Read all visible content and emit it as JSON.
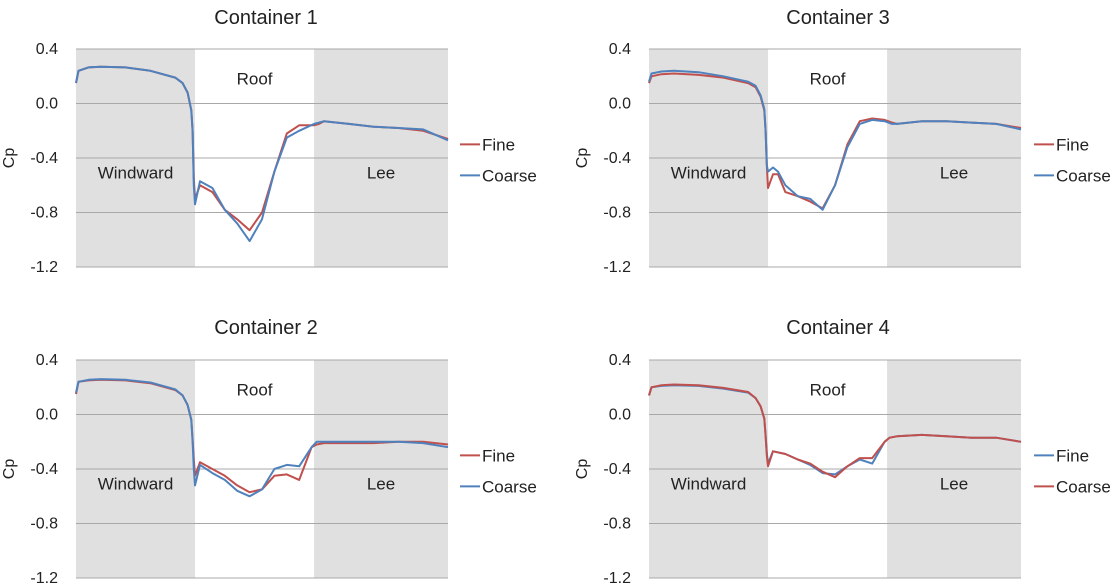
{
  "chart_data": [
    {
      "type": "line",
      "title": "Container 1",
      "ylabel": "Cp",
      "ylim": [
        -1.2,
        0.4
      ],
      "yticks": [
        "0.4",
        "0.0",
        "-0.4",
        "-0.8",
        "-1.2"
      ],
      "grid": true,
      "regions": [
        "Windward",
        "Roof",
        "Lee"
      ],
      "legend_position": "right",
      "series": [
        {
          "name": "Fine",
          "color": "#c0504d",
          "x": [
            0,
            0.01,
            0.05,
            0.1,
            0.2,
            0.3,
            0.4,
            0.43,
            0.45,
            0.465,
            0.47,
            0.475,
            0.48,
            0.5,
            0.55,
            0.6,
            0.65,
            0.7,
            0.75,
            0.8,
            0.85,
            0.9,
            0.96,
            0.98,
            1.0,
            1.1,
            1.2,
            1.3,
            1.4,
            1.5
          ],
          "y": [
            0.15,
            0.24,
            0.265,
            0.27,
            0.265,
            0.24,
            0.19,
            0.15,
            0.08,
            -0.05,
            -0.2,
            -0.55,
            -0.7,
            -0.6,
            -0.65,
            -0.78,
            -0.85,
            -0.93,
            -0.8,
            -0.5,
            -0.22,
            -0.16,
            -0.16,
            -0.15,
            -0.13,
            -0.15,
            -0.17,
            -0.18,
            -0.2,
            -0.26
          ]
        },
        {
          "name": "Coarse",
          "color": "#4f81bd",
          "x": [
            0,
            0.01,
            0.05,
            0.1,
            0.2,
            0.3,
            0.4,
            0.43,
            0.45,
            0.465,
            0.47,
            0.475,
            0.48,
            0.5,
            0.55,
            0.6,
            0.65,
            0.7,
            0.75,
            0.8,
            0.85,
            0.9,
            0.96,
            0.98,
            1.0,
            1.1,
            1.2,
            1.3,
            1.4,
            1.5
          ],
          "y": [
            0.15,
            0.24,
            0.265,
            0.27,
            0.265,
            0.24,
            0.19,
            0.15,
            0.08,
            -0.05,
            -0.2,
            -0.6,
            -0.74,
            -0.57,
            -0.62,
            -0.78,
            -0.88,
            -1.01,
            -0.85,
            -0.5,
            -0.25,
            -0.2,
            -0.15,
            -0.14,
            -0.13,
            -0.15,
            -0.17,
            -0.18,
            -0.19,
            -0.27
          ]
        }
      ]
    },
    {
      "type": "line",
      "title": "Container 3",
      "ylabel": "Cp",
      "ylim": [
        -1.2,
        0.4
      ],
      "yticks": [
        "0.4",
        "0.0",
        "-0.4",
        "-0.8",
        "-1.2"
      ],
      "grid": true,
      "regions": [
        "Windward",
        "Roof",
        "Lee"
      ],
      "legend_position": "right",
      "series": [
        {
          "name": "Fine",
          "color": "#c0504d",
          "x": [
            0,
            0.01,
            0.05,
            0.1,
            0.2,
            0.3,
            0.4,
            0.43,
            0.45,
            0.465,
            0.47,
            0.475,
            0.48,
            0.5,
            0.52,
            0.55,
            0.6,
            0.65,
            0.7,
            0.75,
            0.8,
            0.85,
            0.9,
            0.95,
            0.98,
            1.0,
            1.1,
            1.2,
            1.3,
            1.4,
            1.5
          ],
          "y": [
            0.15,
            0.2,
            0.215,
            0.22,
            0.21,
            0.19,
            0.15,
            0.12,
            0.05,
            -0.05,
            -0.2,
            -0.45,
            -0.62,
            -0.52,
            -0.52,
            -0.65,
            -0.68,
            -0.72,
            -0.77,
            -0.6,
            -0.3,
            -0.13,
            -0.11,
            -0.12,
            -0.14,
            -0.15,
            -0.13,
            -0.13,
            -0.14,
            -0.15,
            -0.18
          ]
        },
        {
          "name": "Coarse",
          "color": "#4f81bd",
          "x": [
            0,
            0.01,
            0.05,
            0.1,
            0.2,
            0.3,
            0.4,
            0.43,
            0.45,
            0.465,
            0.47,
            0.475,
            0.48,
            0.5,
            0.52,
            0.55,
            0.6,
            0.65,
            0.7,
            0.75,
            0.8,
            0.85,
            0.9,
            0.95,
            0.98,
            1.0,
            1.1,
            1.2,
            1.3,
            1.4,
            1.5
          ],
          "y": [
            0.16,
            0.22,
            0.235,
            0.24,
            0.23,
            0.2,
            0.16,
            0.13,
            0.06,
            -0.04,
            -0.2,
            -0.45,
            -0.5,
            -0.47,
            -0.5,
            -0.6,
            -0.68,
            -0.7,
            -0.78,
            -0.6,
            -0.32,
            -0.15,
            -0.12,
            -0.13,
            -0.15,
            -0.15,
            -0.13,
            -0.13,
            -0.14,
            -0.15,
            -0.19
          ]
        }
      ]
    },
    {
      "type": "line",
      "title": "Container 2",
      "ylabel": "Cp",
      "ylim": [
        -1.2,
        0.4
      ],
      "yticks": [
        "0.4",
        "0.0",
        "-0.4",
        "-0.8",
        "-1.2"
      ],
      "grid": true,
      "regions": [
        "Windward",
        "Roof",
        "Lee"
      ],
      "legend_position": "right",
      "series": [
        {
          "name": "Fine",
          "color": "#c0504d",
          "x": [
            0,
            0.01,
            0.05,
            0.1,
            0.2,
            0.3,
            0.4,
            0.43,
            0.45,
            0.465,
            0.47,
            0.475,
            0.48,
            0.5,
            0.55,
            0.6,
            0.65,
            0.7,
            0.75,
            0.8,
            0.85,
            0.9,
            0.95,
            0.97,
            1.0,
            1.1,
            1.2,
            1.3,
            1.4,
            1.5
          ],
          "y": [
            0.15,
            0.24,
            0.25,
            0.255,
            0.25,
            0.23,
            0.18,
            0.14,
            0.07,
            -0.04,
            -0.18,
            -0.33,
            -0.45,
            -0.35,
            -0.4,
            -0.45,
            -0.52,
            -0.57,
            -0.55,
            -0.45,
            -0.44,
            -0.48,
            -0.24,
            -0.22,
            -0.21,
            -0.21,
            -0.21,
            -0.2,
            -0.2,
            -0.22
          ]
        },
        {
          "name": "Coarse",
          "color": "#4f81bd",
          "x": [
            0,
            0.01,
            0.05,
            0.1,
            0.2,
            0.3,
            0.4,
            0.43,
            0.45,
            0.465,
            0.47,
            0.475,
            0.48,
            0.5,
            0.55,
            0.6,
            0.65,
            0.7,
            0.75,
            0.8,
            0.85,
            0.9,
            0.95,
            0.97,
            1.0,
            1.1,
            1.2,
            1.3,
            1.4,
            1.5
          ],
          "y": [
            0.16,
            0.24,
            0.255,
            0.26,
            0.255,
            0.235,
            0.185,
            0.14,
            0.07,
            -0.04,
            -0.2,
            -0.4,
            -0.52,
            -0.37,
            -0.43,
            -0.48,
            -0.56,
            -0.6,
            -0.55,
            -0.4,
            -0.37,
            -0.38,
            -0.24,
            -0.2,
            -0.2,
            -0.2,
            -0.2,
            -0.2,
            -0.21,
            -0.24
          ]
        }
      ]
    },
    {
      "type": "line",
      "title": "Container 4",
      "ylabel": "Cp",
      "ylim": [
        -1.2,
        0.4
      ],
      "yticks": [
        "0.4",
        "0.0",
        "-0.4",
        "-0.8",
        "-1.2"
      ],
      "grid": true,
      "regions": [
        "Windward",
        "Roof",
        "Lee"
      ],
      "legend_position": "right",
      "series": [
        {
          "name": "Fine",
          "color": "#4f81bd",
          "x": [
            0,
            0.01,
            0.05,
            0.1,
            0.2,
            0.3,
            0.4,
            0.43,
            0.45,
            0.465,
            0.47,
            0.475,
            0.48,
            0.5,
            0.55,
            0.6,
            0.65,
            0.7,
            0.75,
            0.8,
            0.85,
            0.9,
            0.95,
            0.97,
            1.0,
            1.1,
            1.2,
            1.3,
            1.4,
            1.5
          ],
          "y": [
            0.14,
            0.2,
            0.21,
            0.215,
            0.21,
            0.19,
            0.16,
            0.12,
            0.06,
            -0.03,
            -0.15,
            -0.28,
            -0.36,
            -0.27,
            -0.29,
            -0.33,
            -0.37,
            -0.43,
            -0.44,
            -0.38,
            -0.33,
            -0.36,
            -0.2,
            -0.17,
            -0.16,
            -0.15,
            -0.16,
            -0.17,
            -0.17,
            -0.2
          ]
        },
        {
          "name": "Coarse",
          "color": "#c0504d",
          "x": [
            0,
            0.01,
            0.05,
            0.1,
            0.2,
            0.3,
            0.4,
            0.43,
            0.45,
            0.465,
            0.47,
            0.475,
            0.48,
            0.5,
            0.55,
            0.6,
            0.65,
            0.7,
            0.75,
            0.8,
            0.85,
            0.9,
            0.95,
            0.97,
            1.0,
            1.1,
            1.2,
            1.3,
            1.4,
            1.5
          ],
          "y": [
            0.14,
            0.2,
            0.215,
            0.22,
            0.215,
            0.195,
            0.165,
            0.12,
            0.06,
            -0.03,
            -0.16,
            -0.3,
            -0.38,
            -0.27,
            -0.29,
            -0.33,
            -0.36,
            -0.42,
            -0.46,
            -0.38,
            -0.32,
            -0.32,
            -0.2,
            -0.17,
            -0.16,
            -0.15,
            -0.16,
            -0.17,
            -0.17,
            -0.2
          ]
        }
      ]
    }
  ]
}
